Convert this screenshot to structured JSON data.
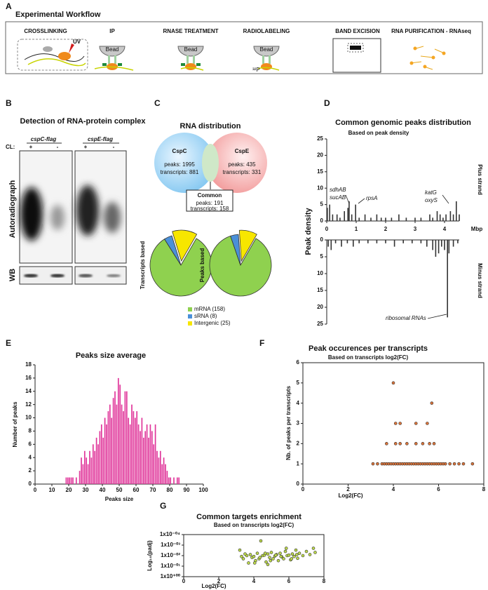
{
  "panels": [
    "A",
    "B",
    "C",
    "D",
    "E",
    "F",
    "G"
  ],
  "workflow": {
    "title": "Experimental Workflow",
    "steps": [
      "CROSSLINKING",
      "IP",
      "RNASE TREATMENT",
      "RADIOLABELING",
      "BAND EXCISION",
      "RNA PURIFICATION - RNAseq"
    ],
    "uv": "UV",
    "bead": [
      "Bead",
      "Bead",
      "Bead"
    ],
    "label32p": "³²P"
  },
  "blot": {
    "title": "Detection of RNA-protein complex",
    "strains": [
      "cspC-flag",
      "cspE-flag"
    ],
    "cl": "CL:",
    "signs": [
      "+",
      "-",
      "+",
      "-"
    ],
    "autoradiograph": "Autoradiograph",
    "wb": "WB"
  },
  "venn": {
    "title": "RNA distribution",
    "left": {
      "name": "CspC",
      "peaks": "peaks: 1995",
      "transcripts": "transcripts: 881"
    },
    "right": {
      "name": "CspE",
      "peaks": "peaks: 435",
      "transcripts": "transcripts: 331"
    },
    "common": {
      "name": "Common",
      "peaks": "peaks: 191",
      "transcripts": "transcripts: 158"
    }
  },
  "chart_data": [
    {
      "type": "bar",
      "title": "Common genomic peaks distribution",
      "subtitle": "Based on peak density",
      "ylabel": "Peak density",
      "xlabel": "Mbp",
      "label": "Plus strand",
      "color": "#333333",
      "x": [
        0.02,
        0.1,
        0.2,
        0.35,
        0.45,
        0.6,
        0.72,
        0.76,
        0.85,
        0.98,
        1.1,
        1.3,
        1.5,
        1.7,
        1.85,
        2.0,
        2.2,
        2.45,
        2.7,
        3.0,
        3.2,
        3.5,
        3.6,
        3.75,
        3.85,
        3.95,
        4.05,
        4.2,
        4.3,
        4.4,
        4.5
      ],
      "values": [
        4,
        5,
        2,
        2,
        1,
        3,
        4,
        6,
        2,
        5,
        1,
        2,
        1,
        2,
        1,
        1,
        1,
        2,
        1,
        1,
        1,
        2,
        1,
        3,
        2,
        1,
        2,
        3,
        2,
        6,
        2
      ],
      "xlim": [
        0,
        4.5
      ],
      "xticks": [
        0,
        1,
        2,
        3,
        4
      ],
      "ylim": [
        0,
        25
      ],
      "yticks": [
        0,
        5,
        10,
        15,
        20,
        25
      ],
      "annotations": [
        "sdhAB",
        "sucAB",
        "rpsA",
        "katG",
        "oxyS"
      ]
    },
    {
      "type": "bar",
      "label": "Minus strand",
      "color": "#333333",
      "x": [
        0.05,
        0.15,
        0.3,
        0.5,
        0.7,
        0.9,
        1.1,
        1.4,
        1.7,
        2.0,
        2.3,
        2.6,
        2.9,
        3.2,
        3.4,
        3.6,
        3.7,
        3.8,
        3.9,
        4.0,
        4.1,
        4.15,
        4.3,
        4.45
      ],
      "values": [
        2,
        3,
        1,
        2,
        1,
        2,
        1,
        1,
        1,
        1,
        2,
        1,
        1,
        1,
        2,
        3,
        5,
        4,
        2,
        3,
        23,
        4,
        2,
        1
      ],
      "xlim": [
        0,
        4.5
      ],
      "ylim": [
        25,
        0
      ],
      "yticks": [
        0,
        5,
        10,
        15,
        20,
        25
      ],
      "annotations": [
        "ribosomal RNAs"
      ]
    },
    {
      "type": "pie",
      "label": "Transcripts based",
      "categories": [
        "mRNA (158)",
        "sRNA (8)",
        "Intergenic (25)"
      ],
      "values": [
        158,
        8,
        25
      ],
      "colors": [
        "#8fd14f",
        "#4a90d9",
        "#f7e600"
      ]
    },
    {
      "type": "pie",
      "label": "Peaks based",
      "values": [
        165,
        8,
        18
      ],
      "colors": [
        "#8fd14f",
        "#4a90d9",
        "#f7e600"
      ]
    },
    {
      "type": "histogram",
      "title": "Peaks size average",
      "xlabel": "Peaks size",
      "ylabel": "Number of peaks",
      "color": "#e0359a",
      "bins": [
        18,
        19,
        20,
        21,
        22,
        23,
        24,
        25,
        26,
        27,
        28,
        29,
        30,
        31,
        32,
        33,
        34,
        35,
        36,
        37,
        38,
        39,
        40,
        41,
        42,
        43,
        44,
        45,
        46,
        47,
        48,
        49,
        50,
        51,
        52,
        53,
        54,
        55,
        56,
        57,
        58,
        59,
        60,
        61,
        62,
        63,
        64,
        65,
        66,
        67,
        68,
        69,
        70,
        71,
        72,
        73,
        74,
        75,
        76,
        77,
        78,
        79,
        80,
        81,
        82,
        83,
        84,
        85,
        86
      ],
      "values": [
        1,
        1,
        1,
        1,
        1,
        0,
        1,
        0,
        2,
        4,
        3,
        5,
        4,
        3,
        5,
        4,
        6,
        5,
        7,
        6,
        8,
        9,
        7,
        10,
        9,
        11,
        12,
        10,
        13,
        14,
        12,
        16,
        15,
        12,
        11,
        14,
        14,
        10,
        9,
        12,
        11,
        10,
        11,
        9,
        8,
        10,
        7,
        8,
        9,
        7,
        9,
        8,
        6,
        9,
        5,
        4,
        5,
        3,
        4,
        3,
        2,
        1,
        1,
        0,
        1,
        0,
        1,
        1
      ],
      "xlim": [
        0,
        100
      ],
      "xticks": [
        0,
        10,
        20,
        30,
        40,
        50,
        60,
        70,
        80,
        90,
        100
      ],
      "ylim": [
        0,
        18
      ],
      "yticks": [
        0,
        2,
        4,
        6,
        8,
        10,
        12,
        14,
        16,
        18
      ]
    },
    {
      "type": "scatter",
      "title": "Peak occurences per transcripts",
      "subtitle": "Based on transcripts log2(FC)",
      "xlabel": "Log2(FC)",
      "ylabel": "Nb. of peaks per transcripts",
      "color": "#d9733a",
      "x": [
        3.1,
        3.3,
        3.5,
        3.6,
        3.7,
        3.8,
        3.9,
        4.0,
        4.1,
        4.2,
        4.3,
        4.4,
        4.5,
        4.6,
        4.7,
        4.8,
        4.9,
        5.0,
        5.1,
        5.2,
        5.3,
        5.4,
        5.5,
        5.6,
        5.7,
        5.8,
        5.9,
        6.0,
        6.1,
        6.2,
        6.3,
        6.5,
        6.7,
        6.9,
        7.1,
        7.5,
        3.7,
        4.1,
        4.3,
        4.6,
        5.0,
        5.3,
        5.6,
        5.8,
        4.1,
        4.3,
        5.0,
        5.5,
        5.7,
        4.0
      ],
      "values": [
        1,
        1,
        1,
        1,
        1,
        1,
        1,
        1,
        1,
        1,
        1,
        1,
        1,
        1,
        1,
        1,
        1,
        1,
        1,
        1,
        1,
        1,
        1,
        1,
        1,
        1,
        1,
        1,
        1,
        1,
        1,
        1,
        1,
        1,
        1,
        1,
        2,
        2,
        2,
        2,
        2,
        2,
        2,
        2,
        3,
        3,
        3,
        3,
        4,
        5
      ],
      "xlim": [
        0,
        8
      ],
      "xticks": [
        0,
        2,
        4,
        6,
        8
      ],
      "ylim": [
        0,
        6
      ],
      "yticks": [
        0,
        1,
        2,
        3,
        4,
        5,
        6
      ]
    },
    {
      "type": "scatter",
      "title": "Common targets enrichment",
      "subtitle": "Based on transcripts log2(FC)",
      "xlabel": "Log2(FC)",
      "ylabel": "Log₁₀(padj)",
      "color": "#bcd84a",
      "log_y": true,
      "x": [
        3.2,
        3.4,
        3.6,
        3.7,
        3.8,
        3.9,
        4.0,
        4.1,
        4.2,
        4.3,
        4.4,
        4.5,
        4.6,
        4.7,
        4.8,
        4.9,
        5.0,
        5.1,
        5.2,
        5.3,
        5.4,
        5.5,
        5.6,
        5.7,
        5.8,
        5.9,
        6.0,
        6.1,
        6.2,
        6.3,
        6.4,
        6.5,
        6.6,
        6.8,
        7.0,
        7.2,
        7.4,
        7.5,
        3.5,
        4.05,
        4.35,
        4.65,
        4.95,
        5.25,
        5.55,
        5.85,
        6.15,
        6.45,
        3.3,
        4.8
      ],
      "values": [
        0.003,
        0.02,
        0.01,
        0.05,
        0.008,
        0.015,
        0.012,
        0.03,
        0.006,
        0.02,
        0.0004,
        0.01,
        0.009,
        0.04,
        0.007,
        0.015,
        0.005,
        0.02,
        0.011,
        0.008,
        0.03,
        0.006,
        0.013,
        0.02,
        0.004,
        0.01,
        0.009,
        0.025,
        0.007,
        0.012,
        0.003,
        0.018,
        0.006,
        0.01,
        0.004,
        0.008,
        0.002,
        0.005,
        0.007,
        0.05,
        0.015,
        0.006,
        0.03,
        0.009,
        0.012,
        0.002,
        0.02,
        0.008,
        0.012,
        0.07
      ],
      "xlim": [
        0,
        8
      ],
      "xticks": [
        0,
        2,
        4,
        6,
        8
      ],
      "ylim": [
        1,
        0.0001
      ],
      "yticks": [
        {
          "value": 1,
          "label": "1x10⁺⁰⁰"
        },
        {
          "value": 0.1,
          "label": "1x10⁻⁰¹"
        },
        {
          "value": 0.01,
          "label": "1x10⁻⁰²"
        },
        {
          "value": 0.001,
          "label": "1x10⁻⁰³"
        },
        {
          "value": 0.0001,
          "label": "1x10⁻⁰⁴"
        }
      ]
    }
  ]
}
